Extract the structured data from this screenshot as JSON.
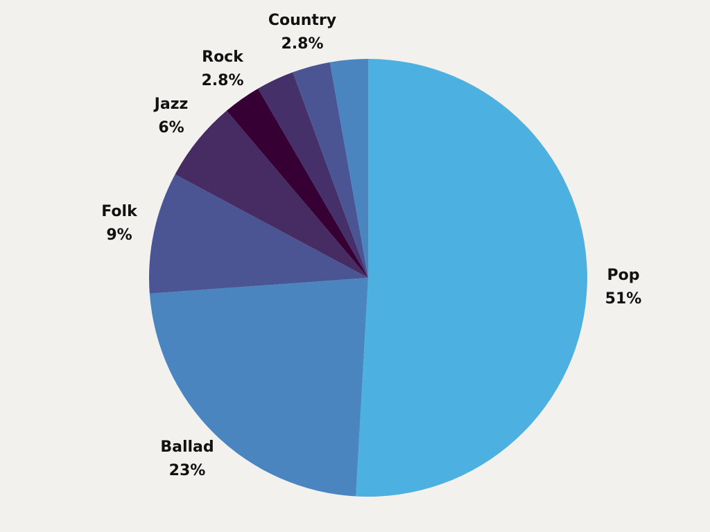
{
  "chart_data": {
    "type": "pie",
    "start_angle_deg": 0,
    "direction": "clockwise",
    "slices": [
      {
        "label": "Pop",
        "value_label": "51%",
        "value": 51,
        "color": "#4cb0e0"
      },
      {
        "label": "Ballad",
        "value_label": "23%",
        "value": 23,
        "color": "#4a85c0"
      },
      {
        "label": "Folk",
        "value_label": "9%",
        "value": 9,
        "color": "#4b5593"
      },
      {
        "label": "Jazz",
        "value_label": "6%",
        "value": 6,
        "color": "#472c63"
      },
      {
        "label": "",
        "value_label": "",
        "value": 2.8,
        "color": "#360035"
      },
      {
        "label": "Rock",
        "value_label": "2.8%",
        "value": 2.8,
        "color": "#46306a"
      },
      {
        "label": "",
        "value_label": "",
        "value": 2.8,
        "color": "#4b5593"
      },
      {
        "label": "Country",
        "value_label": "2.8%",
        "value": 2.8,
        "color": "#4a85c0"
      }
    ]
  }
}
